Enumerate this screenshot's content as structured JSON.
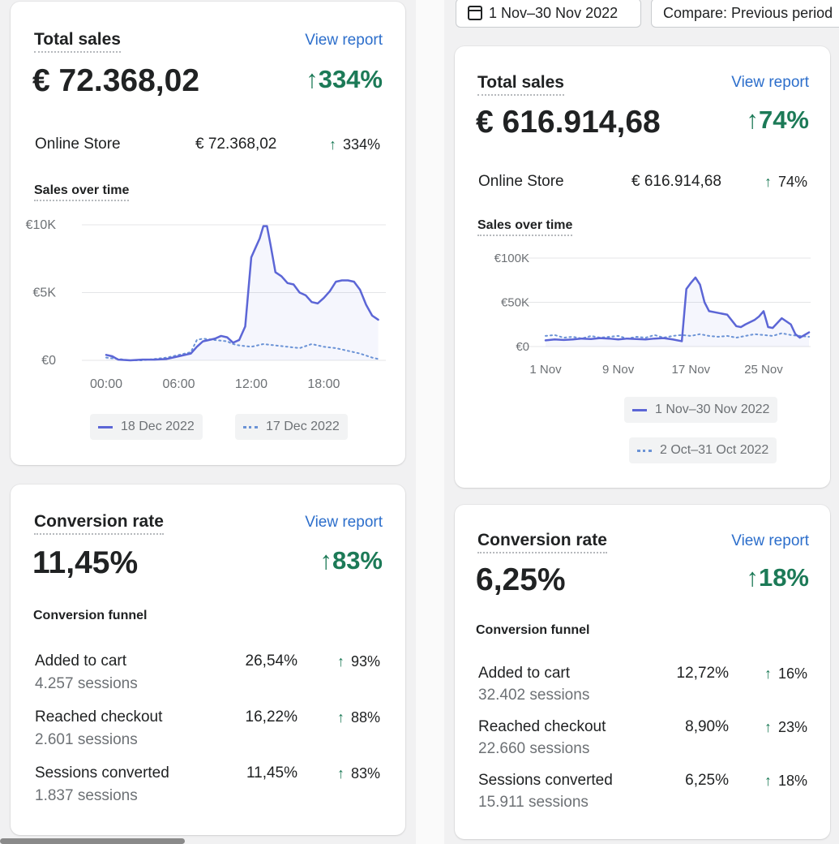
{
  "left": {
    "sales": {
      "title": "Total sales",
      "view_report": "View report",
      "value": "€ 72.368,02",
      "change": "334%",
      "channel": {
        "label": "Online Store",
        "value": "€ 72.368,02",
        "change": "334%"
      },
      "chart_title": "Sales over time",
      "legend": {
        "current": "18 Dec 2022",
        "previous": "17 Dec 2022"
      }
    },
    "conversion": {
      "title": "Conversion rate",
      "view_report": "View report",
      "value": "11,45%",
      "change": "83%",
      "funnel_title": "Conversion funnel",
      "rows": [
        {
          "label": "Added to cart",
          "sessions": "4.257 sessions",
          "pct": "26,54%",
          "change": "93%"
        },
        {
          "label": "Reached checkout",
          "sessions": "2.601 sessions",
          "pct": "16,22%",
          "change": "88%"
        },
        {
          "label": "Sessions converted",
          "sessions": "1.837 sessions",
          "pct": "11,45%",
          "change": "83%"
        }
      ]
    }
  },
  "right": {
    "toolbar": {
      "date_range": "1 Nov–30 Nov 2022",
      "compare": "Compare: Previous period"
    },
    "sales": {
      "title": "Total sales",
      "view_report": "View report",
      "value": "€ 616.914,68",
      "change": "74%",
      "channel": {
        "label": "Online Store",
        "value": "€ 616.914,68",
        "change": "74%"
      },
      "chart_title": "Sales over time",
      "legend": {
        "current": "1 Nov–30 Nov 2022",
        "previous": "2 Oct–31 Oct 2022"
      }
    },
    "conversion": {
      "title": "Conversion rate",
      "view_report": "View report",
      "value": "6,25%",
      "change": "18%",
      "funnel_title": "Conversion funnel",
      "rows": [
        {
          "label": "Added to cart",
          "sessions": "32.402 sessions",
          "pct": "12,72%",
          "change": "16%"
        },
        {
          "label": "Reached checkout",
          "sessions": "22.660 sessions",
          "pct": "8,90%",
          "change": "23%"
        },
        {
          "label": "Sessions converted",
          "sessions": "15.911 sessions",
          "pct": "6,25%",
          "change": "18%"
        }
      ]
    }
  },
  "chart_data": [
    {
      "type": "line",
      "ylim": [
        0,
        10000
      ],
      "y_ticks": [
        0,
        5000,
        10000
      ],
      "y_tick_labels": [
        "€0",
        "€5K",
        "€10K"
      ],
      "x_tick_labels": [
        "00:00",
        "06:00",
        "12:00",
        "18:00"
      ],
      "x_tick_positions": [
        0,
        6,
        12,
        18
      ],
      "xlim": [
        0,
        23
      ],
      "series": [
        {
          "name": "18 Dec 2022",
          "style": "solid",
          "color": "#5c66d6",
          "x": [
            0,
            0.5,
            1,
            2,
            3,
            4,
            5,
            6,
            7,
            7.5,
            8,
            9,
            9.5,
            10,
            10.5,
            11,
            11.5,
            12,
            12.3,
            12.7,
            13,
            13.3,
            13.6,
            14,
            14.5,
            15,
            15.5,
            16,
            16.5,
            17,
            17.5,
            18,
            18.5,
            19,
            19.5,
            20,
            20.5,
            21,
            21.5,
            22,
            22.5
          ],
          "y": [
            400,
            300,
            50,
            0,
            50,
            50,
            100,
            300,
            500,
            1000,
            1400,
            1600,
            1800,
            1700,
            1300,
            1500,
            2500,
            7600,
            8200,
            9000,
            9900,
            9900,
            8500,
            6500,
            6200,
            5700,
            5600,
            5000,
            4800,
            4300,
            4200,
            4600,
            5100,
            5800,
            5900,
            5900,
            5800,
            5200,
            4100,
            3300,
            3000
          ]
        },
        {
          "name": "17 Dec 2022",
          "style": "dotted",
          "color": "#6b93d6",
          "x": [
            0,
            1,
            2,
            3,
            4,
            5,
            6,
            7,
            7.5,
            8,
            9,
            10,
            10.5,
            11,
            12,
            13,
            14,
            15,
            16,
            17,
            18,
            19,
            20,
            21,
            22,
            22.5
          ],
          "y": [
            200,
            100,
            0,
            0,
            100,
            200,
            400,
            600,
            1500,
            1600,
            1500,
            1400,
            1200,
            1100,
            1000,
            1200,
            1100,
            1000,
            900,
            1200,
            1000,
            900,
            700,
            500,
            200,
            100
          ]
        }
      ]
    },
    {
      "type": "line",
      "ylim": [
        0,
        100000
      ],
      "y_ticks": [
        0,
        50000,
        100000
      ],
      "y_tick_labels": [
        "€0",
        "€50K",
        "€100K"
      ],
      "x_tick_labels": [
        "1 Nov",
        "9 Nov",
        "17 Nov",
        "25 Nov"
      ],
      "x_tick_positions": [
        1,
        9,
        17,
        25
      ],
      "xlim": [
        1,
        30
      ],
      "series": [
        {
          "name": "1 Nov–30 Nov 2022",
          "style": "solid",
          "color": "#5c66d6",
          "x": [
            1,
            2,
            3,
            4,
            5,
            6,
            7,
            8,
            9,
            10,
            11,
            12,
            13,
            14,
            15,
            16,
            16.5,
            17,
            17.5,
            18,
            18.5,
            19,
            20,
            21,
            22,
            22.5,
            23,
            24,
            24.5,
            25,
            25.5,
            26,
            27,
            28,
            28.5,
            29,
            30
          ],
          "y": [
            7000,
            8000,
            7500,
            8000,
            9000,
            8500,
            9500,
            9000,
            8000,
            9000,
            8500,
            8000,
            9000,
            9500,
            8000,
            6000,
            65000,
            72000,
            78000,
            70000,
            50000,
            40000,
            38000,
            36000,
            23000,
            22000,
            25000,
            30000,
            34000,
            40000,
            22000,
            21000,
            32000,
            25000,
            14000,
            10000,
            16000
          ]
        },
        {
          "name": "2 Oct–31 Oct 2022",
          "style": "dotted",
          "color": "#6b93d6",
          "x": [
            1,
            2,
            3,
            4,
            5,
            6,
            7,
            8,
            9,
            10,
            11,
            12,
            13,
            14,
            15,
            16,
            17,
            18,
            19,
            20,
            21,
            22,
            23,
            24,
            25,
            26,
            27,
            28,
            29,
            30
          ],
          "y": [
            12000,
            13000,
            10000,
            11000,
            9000,
            12000,
            10000,
            11000,
            12000,
            9000,
            11000,
            10000,
            13000,
            10000,
            12000,
            13000,
            12000,
            14000,
            12000,
            11000,
            12000,
            10000,
            12000,
            14000,
            13000,
            12000,
            15000,
            13000,
            12000,
            11000
          ]
        }
      ]
    }
  ]
}
